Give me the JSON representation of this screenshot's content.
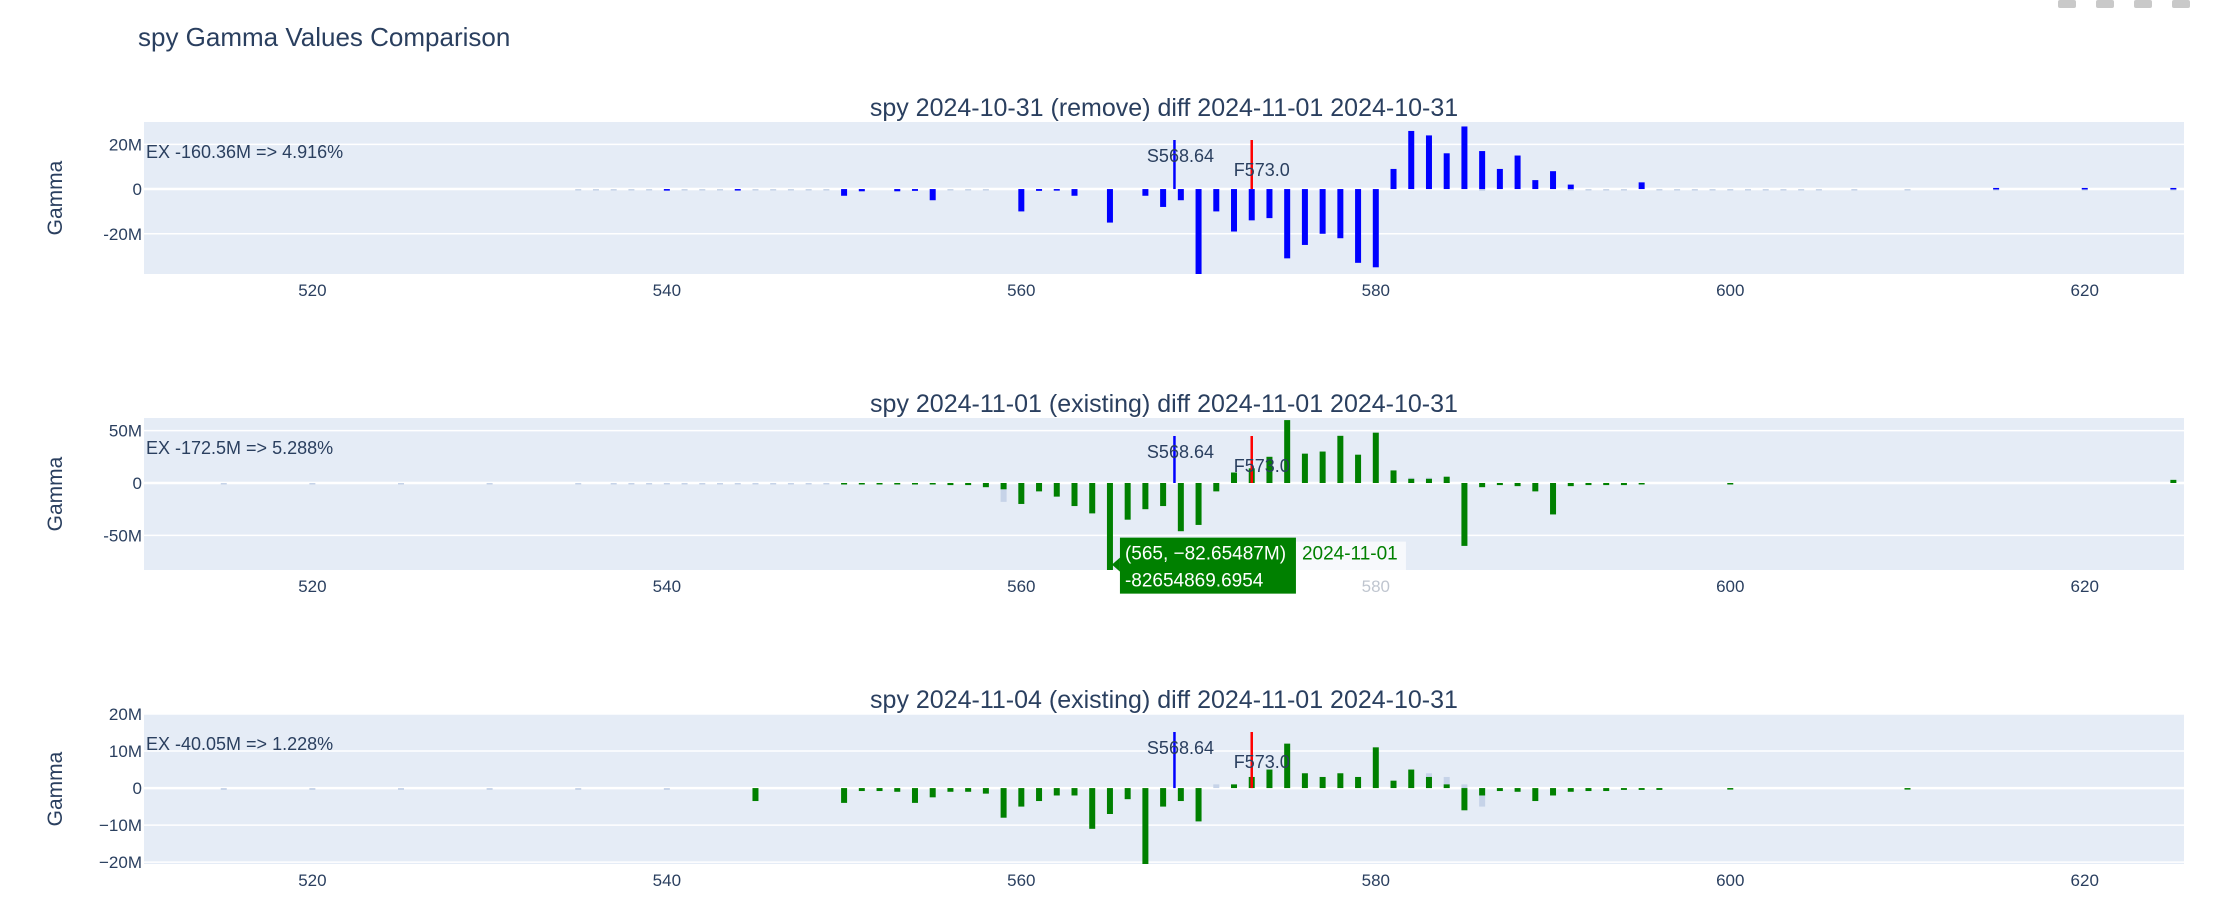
{
  "title": "spy Gamma Values Comparison",
  "colors": {
    "plot_bg": "#e5ecf6",
    "grid": "#ffffff",
    "text": "#2a3f5f",
    "spot_line": "#0000ff",
    "forward_line": "#ff0000",
    "series_blue": "#0000ff",
    "series_green": "#008000",
    "baseline_bar": "#c6d3e8",
    "tooltip_bg": "#008000",
    "tooltip_text": "#ffffff"
  },
  "chart_data": [
    {
      "type": "bar",
      "title": "spy 2024-10-31 (remove) diff 2024-11-01 2024-10-31",
      "ylabel": "Gamma",
      "ylim": [
        -38,
        30
      ],
      "xlim": [
        510.5,
        625.6
      ],
      "xticks": [
        520,
        540,
        560,
        580,
        600,
        620
      ],
      "yticks": [
        {
          "value": 20,
          "label": "20M"
        },
        {
          "value": 0,
          "label": "0"
        },
        {
          "value": -20,
          "label": "-20M"
        }
      ],
      "annotation": "EX -160.36M => 4.916%",
      "spot": {
        "x": 568.64,
        "label": "S568.64"
      },
      "forward": {
        "x": 573.0,
        "label": "F573.0"
      },
      "series_color": "#0000ff",
      "baseline": {
        "x": [
          535,
          536,
          537,
          538,
          539,
          541,
          542,
          543,
          545,
          546,
          547,
          548,
          549,
          551,
          553,
          556,
          557,
          558,
          561,
          562,
          563,
          586,
          591,
          592,
          593,
          594,
          596,
          597,
          598,
          599,
          600,
          601,
          602,
          603,
          604,
          605,
          607,
          610,
          615,
          620,
          625
        ],
        "y": [
          -0.6,
          -0.6,
          -0.6,
          -0.6,
          -0.6,
          -0.6,
          -0.6,
          -0.6,
          -0.6,
          -0.6,
          -0.6,
          -0.6,
          -0.6,
          -0.6,
          -0.6,
          -0.6,
          -0.6,
          -0.6,
          -0.6,
          -0.6,
          -0.6,
          -0.8,
          -0.6,
          -0.6,
          -0.6,
          -0.6,
          -0.6,
          -0.6,
          -0.6,
          -0.6,
          -0.6,
          -0.6,
          -0.6,
          -0.6,
          -0.6,
          -0.6,
          -0.6,
          -0.6,
          -0.6,
          -0.6,
          -0.6
        ]
      },
      "values": {
        "x": [
          540,
          544,
          550,
          551,
          553,
          554,
          555,
          560,
          561,
          562,
          563,
          565,
          567,
          568,
          569,
          570,
          571,
          572,
          573,
          574,
          575,
          576,
          577,
          578,
          579,
          580,
          581,
          582,
          583,
          584,
          585,
          586,
          587,
          588,
          589,
          590,
          591,
          595,
          615,
          620,
          625
        ],
        "y": [
          -0.7,
          -0.5,
          -3,
          -1,
          -1,
          -0.8,
          -5,
          -10,
          -0.8,
          -0.7,
          -3,
          -15,
          -3,
          -8,
          -5,
          -38,
          -10,
          -19,
          -14,
          -13,
          -31,
          -25,
          -20,
          -22,
          -33,
          -35,
          9,
          26,
          24,
          16,
          28,
          17,
          9,
          15,
          4,
          8,
          2,
          3,
          0.5,
          0.5,
          0.5
        ]
      },
      "highlight": null
    },
    {
      "type": "bar",
      "title": "spy 2024-11-01 (existing) diff 2024-11-01 2024-10-31",
      "ylabel": "Gamma",
      "ylim": [
        -83,
        62
      ],
      "xlim": [
        510.5,
        625.6
      ],
      "xticks": [
        520,
        540,
        560,
        580,
        600,
        620
      ],
      "yticks": [
        {
          "value": 50,
          "label": "50M"
        },
        {
          "value": 0,
          "label": "0"
        },
        {
          "value": -50,
          "label": "-50M"
        }
      ],
      "annotation": "EX -172.5M => 5.288%",
      "spot": {
        "x": 568.64,
        "label": "S568.64"
      },
      "forward": {
        "x": 573.0,
        "label": "F573.0"
      },
      "series_color": "#008000",
      "baseline": {
        "x": [
          515,
          520,
          525,
          530,
          535,
          537,
          538,
          539,
          540,
          541,
          542,
          543,
          544,
          545,
          546,
          547,
          548,
          549,
          550,
          558,
          559,
          560,
          581,
          582,
          583,
          584,
          585
        ],
        "y": [
          -0.8,
          -0.8,
          -0.8,
          -0.8,
          -0.8,
          -0.8,
          -0.8,
          -0.8,
          -0.8,
          -0.8,
          -0.8,
          -0.8,
          -0.8,
          -0.8,
          -0.8,
          -0.8,
          -0.8,
          -0.8,
          -0.8,
          -2,
          -18,
          -10,
          5,
          5,
          5,
          5,
          -60
        ]
      },
      "values": {
        "x": [
          550,
          551,
          552,
          553,
          554,
          555,
          556,
          557,
          558,
          559,
          560,
          561,
          562,
          563,
          564,
          565,
          566,
          567,
          568,
          569,
          570,
          571,
          572,
          573,
          574,
          575,
          576,
          577,
          578,
          579,
          580,
          581,
          582,
          583,
          584,
          585,
          586,
          587,
          588,
          589,
          590,
          591,
          592,
          593,
          594,
          595,
          600,
          625
        ],
        "y": [
          -1,
          -1,
          -1,
          -1,
          -1,
          -1,
          -2,
          -2,
          -4,
          -6,
          -20,
          -8,
          -13,
          -22,
          -29,
          -83,
          -35,
          -25,
          -22,
          -46,
          -40,
          -8,
          10,
          14,
          25,
          60,
          28,
          30,
          45,
          27,
          48,
          12,
          4,
          4,
          6,
          -60,
          -4,
          -2,
          -3,
          -8,
          -30,
          -3,
          -2,
          -2,
          -2,
          -1,
          -1,
          3
        ]
      },
      "highlight": {
        "x": 565,
        "y": -82.65487,
        "coord_text": "(565, −82.65487M)",
        "series_name": "2024-11-01",
        "value_text": "-82654869.6954"
      }
    },
    {
      "type": "bar",
      "title": "spy 2024-11-04 (existing) diff 2024-11-01 2024-10-31",
      "ylabel": "Gamma",
      "ylim": [
        -20.5,
        20
      ],
      "xlim": [
        510.5,
        625.6
      ],
      "xticks": [
        520,
        540,
        560,
        580,
        600,
        620
      ],
      "yticks": [
        {
          "value": 20,
          "label": "20M"
        },
        {
          "value": 10,
          "label": "10M"
        },
        {
          "value": 0,
          "label": "0"
        },
        {
          "value": -10,
          "label": "−10M"
        },
        {
          "value": -20,
          "label": "−20M"
        }
      ],
      "annotation": "EX -40.05M => 1.228%",
      "spot": {
        "x": 568.64,
        "label": "S568.64"
      },
      "forward": {
        "x": 573.0,
        "label": "F573.0"
      },
      "series_color": "#008000",
      "baseline": {
        "x": [
          515,
          520,
          525,
          530,
          535,
          540,
          571,
          583,
          584,
          585,
          586
        ],
        "y": [
          -0.5,
          -0.5,
          -0.5,
          -0.5,
          -0.5,
          -0.5,
          1,
          4,
          3,
          1,
          -5
        ]
      },
      "values": {
        "x": [
          545,
          550,
          551,
          552,
          553,
          554,
          555,
          556,
          557,
          558,
          559,
          560,
          561,
          562,
          563,
          564,
          565,
          566,
          567,
          568,
          569,
          570,
          572,
          573,
          574,
          575,
          576,
          577,
          578,
          579,
          580,
          581,
          582,
          583,
          584,
          585,
          586,
          587,
          588,
          589,
          590,
          591,
          592,
          593,
          594,
          595,
          596,
          600,
          610
        ],
        "y": [
          -3.5,
          -4,
          -0.8,
          -0.8,
          -1,
          -4,
          -2.5,
          -1,
          -1,
          -1.5,
          -8,
          -5,
          -3.5,
          -2,
          -2,
          -11,
          -7,
          -3,
          -21,
          -5,
          -3.5,
          -9,
          1,
          3,
          5,
          12,
          4,
          3,
          4,
          3,
          11,
          2,
          5,
          3,
          1,
          -6,
          -2,
          -0.8,
          -1,
          -3.5,
          -2,
          -1,
          -0.8,
          -0.8,
          -0.5,
          -0.5,
          -0.5,
          -0.3,
          -0.3
        ]
      },
      "highlight": null
    }
  ]
}
